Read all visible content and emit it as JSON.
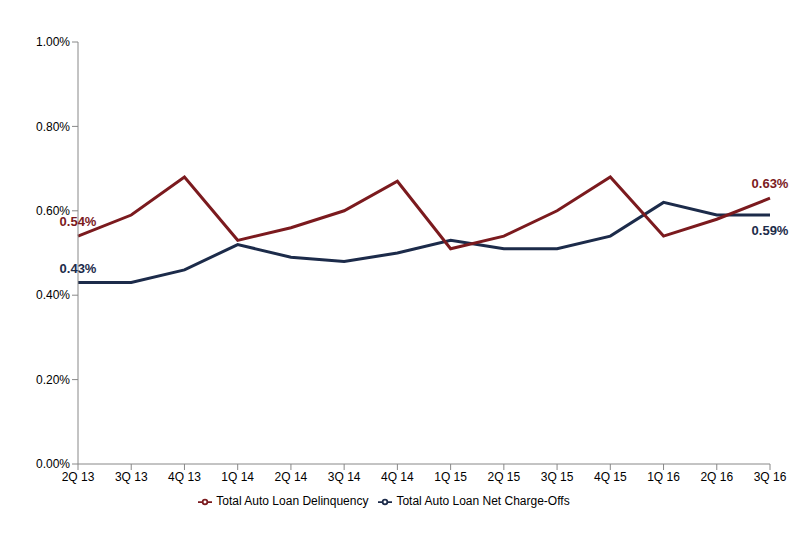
{
  "chart_data": {
    "type": "line",
    "categories": [
      "2Q 13",
      "3Q 13",
      "4Q 13",
      "1Q 14",
      "2Q 14",
      "3Q 14",
      "4Q 14",
      "1Q 15",
      "2Q 15",
      "3Q 15",
      "4Q 15",
      "1Q 16",
      "2Q 16",
      "3Q 16"
    ],
    "series": [
      {
        "name": "Total Auto Loan Net Charge-Offs",
        "color": "#1c2b4a",
        "values": [
          0.43,
          0.43,
          0.46,
          0.52,
          0.49,
          0.48,
          0.5,
          0.53,
          0.51,
          0.51,
          0.54,
          0.62,
          0.59,
          0.59
        ],
        "value_labels": [
          "0.43%",
          null,
          null,
          null,
          null,
          null,
          null,
          null,
          null,
          null,
          null,
          null,
          null,
          "0.59%"
        ]
      },
      {
        "name": "Total Auto Loan Delinquency",
        "color": "#7b1a1e",
        "values": [
          0.54,
          0.59,
          0.68,
          0.53,
          0.56,
          0.6,
          0.67,
          0.51,
          0.54,
          0.6,
          0.68,
          0.54,
          0.58,
          0.63
        ],
        "value_labels": [
          "0.54%",
          null,
          null,
          null,
          null,
          null,
          null,
          null,
          null,
          null,
          null,
          null,
          null,
          "0.63%"
        ]
      }
    ],
    "ylim": [
      0,
      1
    ],
    "yticks": [
      {
        "value": 0,
        "label": "0.00%"
      },
      {
        "value": 0.2,
        "label": "0.20%"
      },
      {
        "value": 0.4,
        "label": "0.40%"
      },
      {
        "value": 0.6,
        "label": "0.60%"
      },
      {
        "value": 0.8,
        "label": "0.80%"
      },
      {
        "value": 1,
        "label": "1.00%"
      }
    ],
    "grid": false,
    "legend": "bottom",
    "marker": "none",
    "line_style": "solid"
  }
}
